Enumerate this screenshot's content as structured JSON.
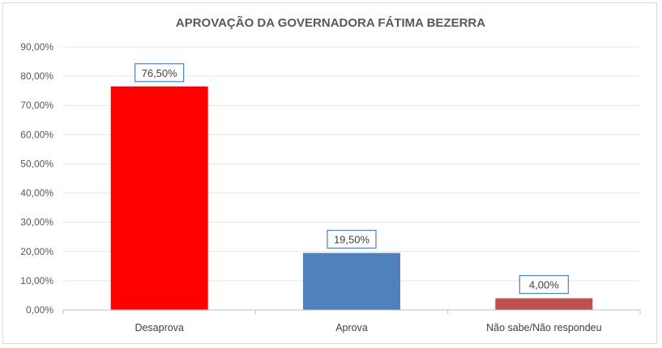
{
  "chart_data": {
    "type": "bar",
    "title": "APROVAÇÃO DA GOVERNADORA FÁTIMA BEZERRA",
    "categories": [
      "Desaprova",
      "Aprova",
      "Não sabe/Não respondeu"
    ],
    "values": [
      76.5,
      19.5,
      4.0
    ],
    "value_labels": [
      "76,50%",
      "19,50%",
      "4,00%"
    ],
    "colors": [
      "#ff0000",
      "#4f81bd",
      "#c0504d"
    ],
    "label_border_color": "#4f81bd",
    "xlabel": "",
    "ylabel": "",
    "ylim": [
      0,
      90
    ],
    "yticks": [
      0,
      10,
      20,
      30,
      40,
      50,
      60,
      70,
      80,
      90
    ],
    "ytick_labels": [
      "0,00%",
      "10,00%",
      "20,00%",
      "30,00%",
      "40,00%",
      "50,00%",
      "60,00%",
      "70,00%",
      "80,00%",
      "90,00%"
    ],
    "grid": true,
    "legend": "none"
  }
}
